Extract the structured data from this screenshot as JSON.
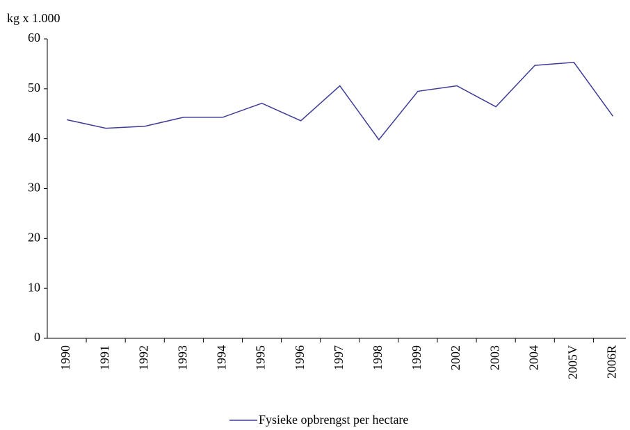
{
  "chart_data": {
    "type": "line",
    "y_axis_label": "kg x 1.000",
    "categories": [
      "1990",
      "1991",
      "1992",
      "1993",
      "1994",
      "1995",
      "1996",
      "1997",
      "1998",
      "1999",
      "2002",
      "2003",
      "2004",
      "2005V",
      "2006R"
    ],
    "series": [
      {
        "name": "Fysieke opbrengst per hectare",
        "color": "#3c3c96",
        "values": [
          43.8,
          42.1,
          42.5,
          44.3,
          44.3,
          47.1,
          43.6,
          50.6,
          39.8,
          49.5,
          50.6,
          46.4,
          54.7,
          55.3,
          44.5
        ]
      }
    ],
    "ylim": [
      0,
      60
    ],
    "yticks": [
      0,
      10,
      20,
      30,
      40,
      50,
      60
    ],
    "legend": "bottom"
  }
}
